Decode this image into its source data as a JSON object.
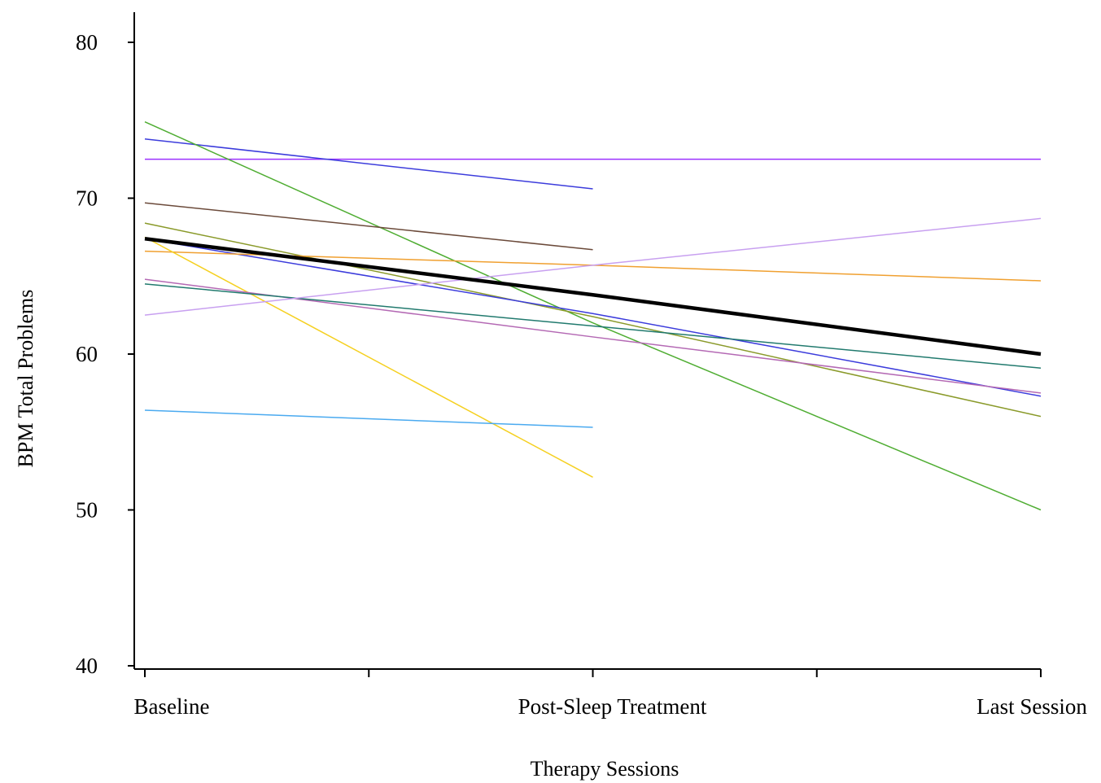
{
  "chart_data": {
    "type": "line",
    "title": "",
    "xlabel": "Therapy Sessions",
    "ylabel": "BPM Total Problems",
    "categories": [
      "Baseline",
      "Post-Sleep Treatment",
      "Last Session"
    ],
    "ylim": [
      40,
      80
    ],
    "yticks": [
      40,
      50,
      60,
      70,
      80
    ],
    "grid": false,
    "legend": "none",
    "series": [
      {
        "color": "#9b30ff",
        "width": 1.5,
        "values": [
          72.5,
          72.5,
          72.5
        ]
      },
      {
        "color": "#3c3cdc",
        "width": 1.5,
        "values": [
          73.8,
          70.6,
          null
        ]
      },
      {
        "color": "#4fad32",
        "width": 1.5,
        "values": [
          74.9,
          62.0,
          50.0
        ]
      },
      {
        "color": "#6b4a3a",
        "width": 1.5,
        "values": [
          69.7,
          66.7,
          null
        ]
      },
      {
        "color": "#8a9a2a",
        "width": 1.5,
        "values": [
          68.4,
          62.4,
          56.0
        ]
      },
      {
        "color": "#3c3cdc",
        "width": 1.5,
        "values": [
          67.4,
          62.6,
          57.3
        ]
      },
      {
        "color": "#f0a030",
        "width": 1.5,
        "values": [
          66.6,
          65.7,
          64.7
        ]
      },
      {
        "color": "#f5d020",
        "width": 1.5,
        "values": [
          67.5,
          52.1,
          null
        ]
      },
      {
        "color": "#b469b4",
        "width": 1.5,
        "values": [
          64.8,
          61.1,
          57.5
        ]
      },
      {
        "color": "#217a6e",
        "width": 1.5,
        "values": [
          64.5,
          61.8,
          59.1
        ]
      },
      {
        "color": "#c8a0f0",
        "width": 1.5,
        "values": [
          62.5,
          65.7,
          68.7
        ]
      },
      {
        "color": "#4aaaf0",
        "width": 1.5,
        "values": [
          56.4,
          55.3,
          null
        ]
      },
      {
        "color": "#000000",
        "width": 4.5,
        "values": [
          67.4,
          63.8,
          60.0
        ]
      }
    ]
  }
}
